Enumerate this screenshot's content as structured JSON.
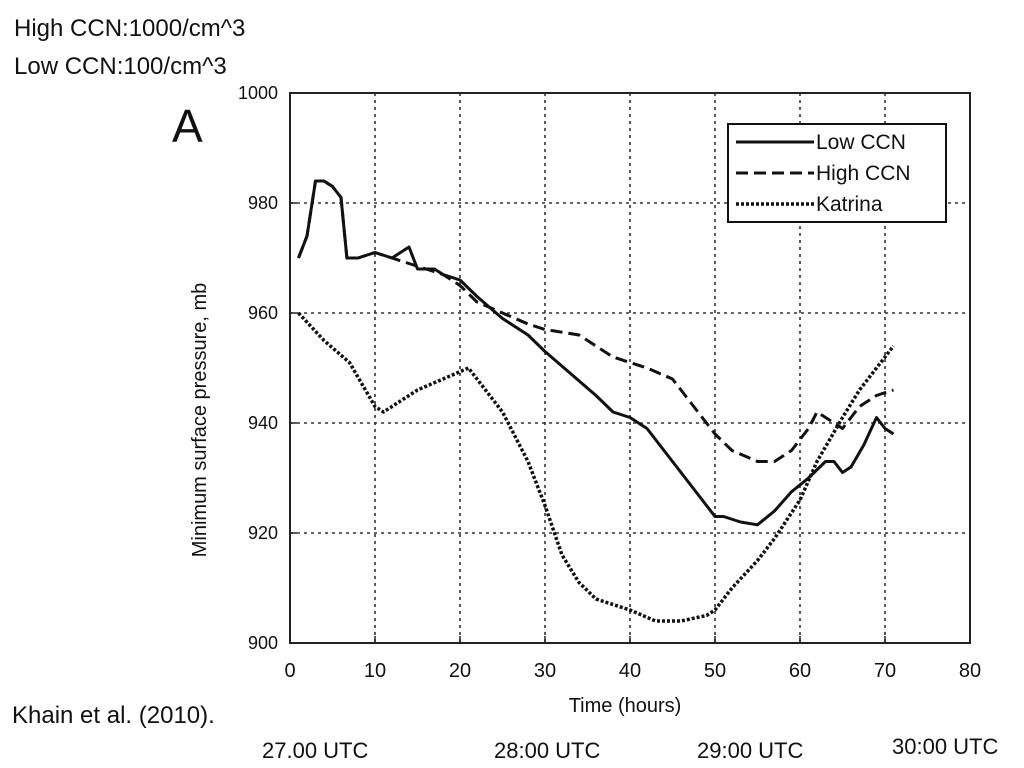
{
  "annotations": {
    "high_ccn": "High CCN:1000/cm^3",
    "low_ccn": "Low CCN:100/cm^3",
    "citation": "Khain et al. (2010)."
  },
  "utc_labels": [
    "27.00 UTC",
    "28:00 UTC",
    "29:00 UTC",
    "30:00 UTC"
  ],
  "chart_data": {
    "type": "line",
    "panel_label": "A",
    "title": "",
    "xlabel": "Time (hours)",
    "ylabel": "Minimum surface pressure, mb",
    "xlim": [
      0,
      80
    ],
    "ylim": [
      900,
      1000
    ],
    "xticks": [
      0,
      10,
      20,
      30,
      40,
      50,
      60,
      70,
      80
    ],
    "yticks": [
      900,
      920,
      940,
      960,
      980,
      1000
    ],
    "grid": true,
    "legend_position": "top-right",
    "series": [
      {
        "name": "Low CCN",
        "style": "solid",
        "color": "#111111",
        "points": [
          [
            1,
            970
          ],
          [
            2,
            974
          ],
          [
            3,
            984
          ],
          [
            4,
            984
          ],
          [
            5,
            983
          ],
          [
            6,
            981
          ],
          [
            6.7,
            970
          ],
          [
            8,
            970
          ],
          [
            10,
            971
          ],
          [
            12,
            970
          ],
          [
            13,
            971
          ],
          [
            14,
            972
          ],
          [
            15,
            968
          ],
          [
            17,
            968
          ],
          [
            18,
            967
          ],
          [
            20,
            966
          ],
          [
            22,
            963
          ],
          [
            25,
            959
          ],
          [
            28,
            956
          ],
          [
            30,
            953
          ],
          [
            33,
            949
          ],
          [
            36,
            945
          ],
          [
            38,
            942
          ],
          [
            40,
            941
          ],
          [
            42,
            939
          ],
          [
            45,
            933
          ],
          [
            48,
            927
          ],
          [
            50,
            923
          ],
          [
            51,
            923
          ],
          [
            53,
            922
          ],
          [
            55,
            921.5
          ],
          [
            57,
            924
          ],
          [
            59,
            927.5
          ],
          [
            61,
            930
          ],
          [
            63,
            933
          ],
          [
            64,
            933
          ],
          [
            65,
            931
          ],
          [
            66,
            932
          ],
          [
            67.5,
            936
          ],
          [
            69,
            941
          ],
          [
            70,
            939
          ],
          [
            71,
            938
          ]
        ]
      },
      {
        "name": "High CCN",
        "style": "dashed",
        "color": "#111111",
        "points": [
          [
            1,
            970
          ],
          [
            2,
            974
          ],
          [
            3,
            984
          ],
          [
            4,
            984
          ],
          [
            5,
            983
          ],
          [
            6,
            981
          ],
          [
            6.7,
            970
          ],
          [
            8,
            970
          ],
          [
            10,
            971
          ],
          [
            12,
            970
          ],
          [
            14,
            969
          ],
          [
            16,
            968
          ],
          [
            18,
            967
          ],
          [
            20,
            965
          ],
          [
            22,
            962
          ],
          [
            25,
            960
          ],
          [
            28,
            958
          ],
          [
            30,
            957
          ],
          [
            34,
            956
          ],
          [
            38,
            952
          ],
          [
            42,
            950
          ],
          [
            45,
            948
          ],
          [
            47,
            944
          ],
          [
            50,
            938
          ],
          [
            52,
            935
          ],
          [
            55,
            933
          ],
          [
            57,
            933
          ],
          [
            59,
            935
          ],
          [
            61,
            939
          ],
          [
            62,
            942
          ],
          [
            64,
            940
          ],
          [
            65,
            939
          ],
          [
            67,
            943
          ],
          [
            69,
            945
          ],
          [
            71,
            946
          ]
        ]
      },
      {
        "name": "Katrina",
        "style": "dotted",
        "color": "#111111",
        "points": [
          [
            1,
            960
          ],
          [
            4,
            955
          ],
          [
            7,
            951
          ],
          [
            10,
            943
          ],
          [
            11,
            942
          ],
          [
            13,
            944
          ],
          [
            15,
            946
          ],
          [
            18,
            948
          ],
          [
            21,
            950
          ],
          [
            23,
            946
          ],
          [
            25,
            942
          ],
          [
            28,
            933
          ],
          [
            30,
            925
          ],
          [
            32,
            916
          ],
          [
            34,
            911
          ],
          [
            36,
            908
          ],
          [
            40,
            906
          ],
          [
            43,
            904
          ],
          [
            46,
            904
          ],
          [
            49,
            905
          ],
          [
            50,
            906
          ],
          [
            52,
            910
          ],
          [
            55,
            915
          ],
          [
            57,
            919
          ],
          [
            60,
            926
          ],
          [
            62,
            933
          ],
          [
            65,
            941
          ],
          [
            67,
            946
          ],
          [
            69,
            950
          ],
          [
            71,
            954
          ]
        ]
      }
    ]
  }
}
